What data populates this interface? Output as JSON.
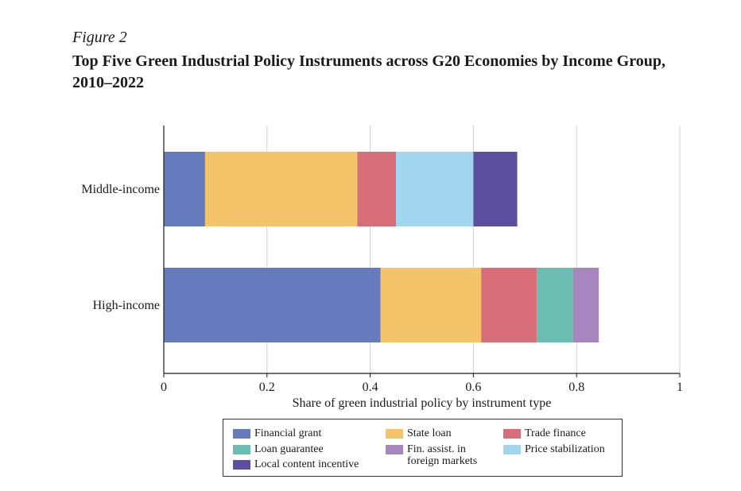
{
  "figure_label": "Figure 2",
  "title": "Top Five Green Industrial Policy Instruments across G20 Economies by Income Group, 2010–2022",
  "chart_data": {
    "type": "bar",
    "orientation": "horizontal",
    "stacked": true,
    "categories": [
      "Middle-income",
      "High-income"
    ],
    "series": [
      {
        "name": "Financial grant",
        "color": "#667bbd",
        "values": [
          0.08,
          0.42
        ]
      },
      {
        "name": "State loan",
        "color": "#f4c46a",
        "values": [
          0.295,
          0.195
        ]
      },
      {
        "name": "Trade finance",
        "color": "#d96e7b",
        "values": [
          0.075,
          0.108
        ]
      },
      {
        "name": "Loan guarantee",
        "color": "#6abdb0",
        "values": [
          0,
          0.07
        ]
      },
      {
        "name": "Fin. assist. in foreign markets",
        "color": "#a786c0",
        "values": [
          0,
          0.05
        ]
      },
      {
        "name": "Price stabilization",
        "color": "#a2d5ef",
        "values": [
          0.15,
          0
        ]
      },
      {
        "name": "Local content incentive",
        "color": "#5c4fa0",
        "values": [
          0.085,
          0
        ]
      }
    ],
    "xlabel": "Share of green industrial policy by instrument type",
    "ylabel": "",
    "xlim": [
      0,
      1
    ],
    "xticks": [
      "0",
      "0.2",
      "0.4",
      "0.6",
      "0.8",
      "1"
    ],
    "grid": "vertical",
    "legend_position": "bottom"
  },
  "legend_items": [
    {
      "label": "Financial grant",
      "color": "#667bbd"
    },
    {
      "label": "State loan",
      "color": "#f4c46a"
    },
    {
      "label": "Trade finance",
      "color": "#d96e7b"
    },
    {
      "label": "Loan guarantee",
      "color": "#6abdb0"
    },
    {
      "label": "Fin. assist. in\nforeign markets",
      "color": "#a786c0"
    },
    {
      "label": "Price stabilization",
      "color": "#a2d5ef"
    },
    {
      "label": "Local content incentive",
      "color": "#5c4fa0"
    }
  ]
}
